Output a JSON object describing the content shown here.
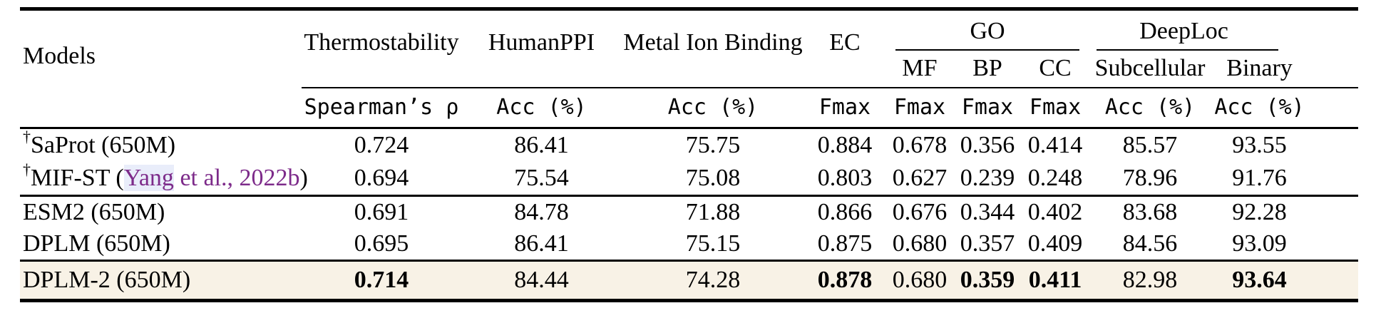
{
  "table": {
    "header": {
      "models": "Models",
      "top": [
        "Thermostability",
        "HumanPPI",
        "Metal Ion Binding",
        "EC"
      ],
      "groups": [
        {
          "label": "GO",
          "children": [
            "MF",
            "BP",
            "CC"
          ]
        },
        {
          "label": "DeepLoc",
          "children": [
            "Subcellular",
            "Binary"
          ]
        }
      ],
      "metrics": [
        "Spearman’s ρ",
        "Acc (%)",
        "Acc (%)",
        "Fmax",
        "Fmax",
        "Fmax",
        "Fmax",
        "Acc (%)",
        "Acc (%)"
      ]
    },
    "rows": [
      {
        "model": "SaProt (650M)",
        "dagger": "†",
        "values": [
          "0.724",
          "86.41",
          "75.75",
          "0.884",
          "0.678",
          "0.356",
          "0.414",
          "85.57",
          "93.55"
        ],
        "bold": []
      },
      {
        "model": "MIF-ST",
        "dagger": "†",
        "cite_hl": "Yang",
        "cite_rest": " et al., 2022b",
        "values": [
          "0.694",
          "75.54",
          "75.08",
          "0.803",
          "0.627",
          "0.239",
          "0.248",
          "78.96",
          "91.76"
        ],
        "bold": [],
        "section_end": true
      },
      {
        "model": "ESM2 (650M)",
        "values": [
          "0.691",
          "84.78",
          "71.88",
          "0.866",
          "0.676",
          "0.344",
          "0.402",
          "83.68",
          "92.28"
        ],
        "bold": []
      },
      {
        "model": "DPLM (650M)",
        "values": [
          "0.695",
          "86.41",
          "75.15",
          "0.875",
          "0.680",
          "0.357",
          "0.409",
          "84.56",
          "93.09"
        ],
        "bold": [],
        "section_end": true
      },
      {
        "model": "DPLM-2 (650M)",
        "values": [
          "0.714",
          "84.44",
          "74.28",
          "0.878",
          "0.680",
          "0.359",
          "0.411",
          "82.98",
          "93.64"
        ],
        "bold": [
          0,
          3,
          5,
          6,
          8
        ],
        "highlight": true
      }
    ],
    "colors": {
      "highlight_row": "#f8f2e6",
      "citation": "#7d2b8a",
      "citation_box": "#e9edfa"
    }
  }
}
